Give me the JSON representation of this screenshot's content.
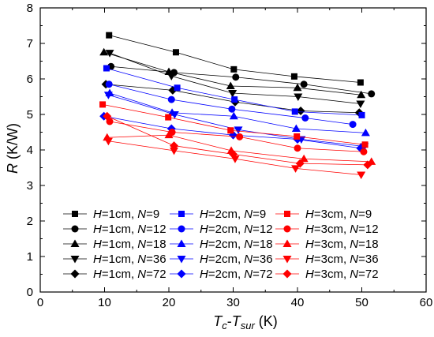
{
  "chart_data": {
    "type": "line",
    "xlabel": {
      "main": "T",
      "sub1": "c",
      "dash": "-",
      "main2": "T",
      "sub2": "sur",
      "unit": " (K)"
    },
    "ylabel": {
      "main": "R",
      "unit": " (K/W)"
    },
    "xlim": [
      0,
      60
    ],
    "ylim": [
      0,
      8
    ],
    "xticks": [
      0,
      10,
      20,
      30,
      40,
      50,
      60
    ],
    "yticks": [
      0,
      1,
      2,
      3,
      4,
      5,
      6,
      7,
      8
    ],
    "x_tick_labels": [
      "0",
      "10",
      "20",
      "30",
      "40",
      "50",
      "60"
    ],
    "y_tick_labels": [
      "0",
      "1",
      "2",
      "3",
      "4",
      "5",
      "6",
      "7",
      "8"
    ],
    "grid": false,
    "legend": "lower-center",
    "series": [
      {
        "name": "H=1cm, N=9",
        "H": "1cm",
        "N": "9",
        "color": "#000000",
        "marker": "square",
        "x": [
          10.7,
          21.1,
          30.1,
          39.5,
          49.8
        ],
        "y": [
          7.23,
          6.75,
          6.27,
          6.07,
          5.9
        ]
      },
      {
        "name": "H=1cm, N=12",
        "H": "1cm",
        "N": "12",
        "color": "#000000",
        "marker": "circle",
        "x": [
          11.0,
          20.8,
          30.4,
          41.0,
          51.5
        ],
        "y": [
          6.35,
          6.18,
          6.05,
          5.85,
          5.58
        ]
      },
      {
        "name": "H=1cm, N=18",
        "H": "1cm",
        "N": "18",
        "color": "#000000",
        "marker": "triangle-up",
        "x": [
          9.9,
          20.0,
          29.6,
          40.0,
          49.9
        ],
        "y": [
          6.75,
          6.2,
          5.8,
          5.75,
          5.55
        ]
      },
      {
        "name": "H=1cm, N=36",
        "H": "1cm",
        "N": "36",
        "color": "#000000",
        "marker": "triangle-down",
        "x": [
          10.8,
          20.4,
          29.9,
          40.1,
          49.8
        ],
        "y": [
          6.73,
          6.08,
          5.6,
          5.5,
          5.3
        ]
      },
      {
        "name": "H=1cm, N=72",
        "H": "1cm",
        "N": "72",
        "color": "#000000",
        "marker": "diamond",
        "x": [
          10.2,
          20.6,
          30.3,
          40.5,
          49.6
        ],
        "y": [
          5.85,
          5.68,
          5.35,
          5.1,
          5.05
        ]
      },
      {
        "name": "H=2cm, N=9",
        "H": "2cm",
        "N": "9",
        "color": "#0000ff",
        "marker": "square",
        "x": [
          10.3,
          21.3,
          30.2,
          39.6,
          50.0
        ],
        "y": [
          6.3,
          5.75,
          5.42,
          5.08,
          4.98
        ]
      },
      {
        "name": "H=2cm, N=12",
        "H": "2cm",
        "N": "12",
        "color": "#0000ff",
        "marker": "circle",
        "x": [
          10.7,
          20.4,
          29.8,
          41.2,
          48.6
        ],
        "y": [
          5.85,
          5.42,
          5.15,
          4.9,
          4.72
        ]
      },
      {
        "name": "H=2cm, N=18",
        "H": "2cm",
        "N": "18",
        "color": "#0000ff",
        "marker": "triangle-up",
        "x": [
          10.8,
          20.5,
          30.1,
          39.8,
          50.6
        ],
        "y": [
          5.6,
          5.05,
          4.95,
          4.6,
          4.48
        ]
      },
      {
        "name": "H=2cm, N=36",
        "H": "2cm",
        "N": "36",
        "color": "#0000ff",
        "marker": "triangle-down",
        "x": [
          10.6,
          20.9,
          30.8,
          40.6,
          50.4
        ],
        "y": [
          5.55,
          5.0,
          4.57,
          4.3,
          4.1
        ]
      },
      {
        "name": "H=2cm, N=72",
        "H": "2cm",
        "N": "72",
        "color": "#0000ff",
        "marker": "diamond",
        "x": [
          9.9,
          20.4,
          30.0,
          40.0,
          49.8
        ],
        "y": [
          4.95,
          4.6,
          4.42,
          4.3,
          4.05
        ]
      },
      {
        "name": "H=3cm, N=9",
        "H": "3cm",
        "N": "9",
        "color": "#ff0000",
        "marker": "square",
        "x": [
          9.7,
          19.9,
          29.6,
          39.9,
          50.5
        ],
        "y": [
          5.28,
          4.92,
          4.55,
          4.38,
          4.15
        ]
      },
      {
        "name": "H=3cm, N=12",
        "H": "3cm",
        "N": "12",
        "color": "#ff0000",
        "marker": "circle",
        "x": [
          10.8,
          20.5,
          31.0,
          40.0,
          50.3
        ],
        "y": [
          4.8,
          4.5,
          4.37,
          4.05,
          3.95
        ]
      },
      {
        "name": "H=3cm, N=18",
        "H": "3cm",
        "N": "18",
        "color": "#ff0000",
        "marker": "triangle-up",
        "x": [
          10.4,
          20.0,
          29.7,
          41.0,
          51.5
        ],
        "y": [
          4.35,
          4.42,
          3.98,
          3.75,
          3.67
        ]
      },
      {
        "name": "H=3cm, N=36",
        "H": "3cm",
        "N": "36",
        "color": "#ff0000",
        "marker": "triangle-down",
        "x": [
          10.6,
          20.8,
          30.3,
          39.7,
          49.9
        ],
        "y": [
          4.25,
          3.98,
          3.75,
          3.48,
          3.3
        ]
      },
      {
        "name": "H=3cm, N=72",
        "H": "3cm",
        "N": "72",
        "color": "#ff0000",
        "marker": "diamond",
        "x": [
          10.4,
          20.8,
          30.0,
          40.4,
          50.9
        ],
        "y": [
          4.95,
          4.12,
          3.88,
          3.62,
          3.58
        ]
      }
    ]
  }
}
